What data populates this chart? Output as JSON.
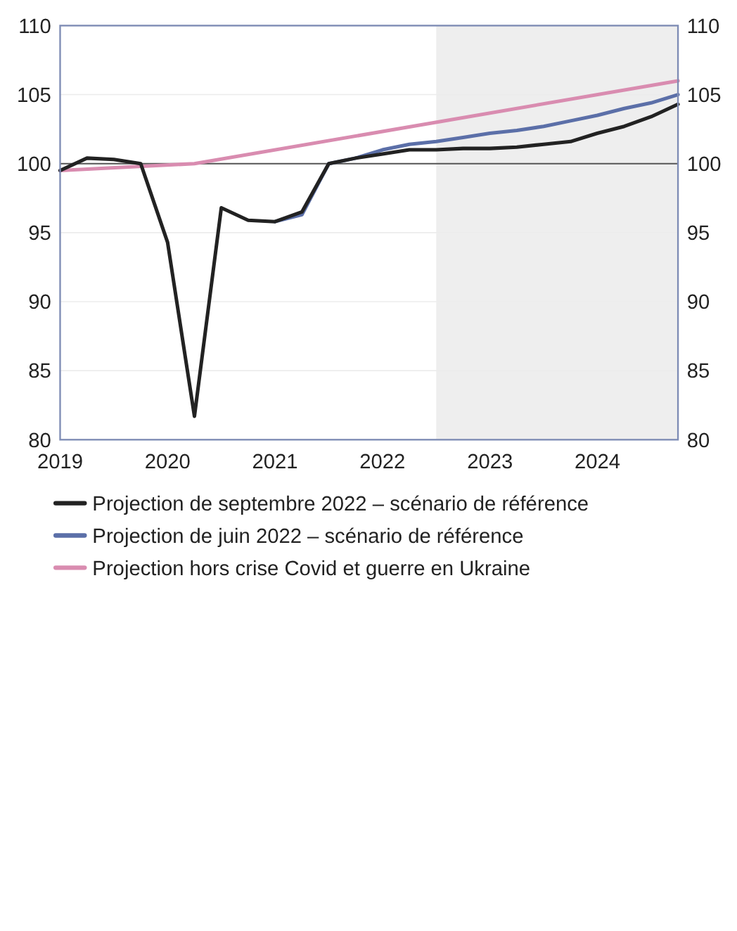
{
  "chart_data": {
    "type": "line",
    "x": [
      2019,
      2019.25,
      2019.5,
      2019.75,
      2020,
      2020.25,
      2020.5,
      2020.75,
      2021,
      2021.25,
      2021.5,
      2021.75,
      2022,
      2022.25,
      2022.5,
      2022.75,
      2023,
      2023.25,
      2023.5,
      2023.75,
      2024,
      2024.25,
      2024.5,
      2024.75
    ],
    "series": [
      {
        "name": "Projection de septembre 2022 – scénario de référence",
        "color": "#222222",
        "values": [
          99.5,
          100.4,
          100.3,
          100.0,
          94.3,
          81.7,
          96.8,
          95.9,
          95.8,
          96.5,
          100.0,
          100.4,
          100.7,
          101.0,
          101.0,
          101.1,
          101.1,
          101.2,
          101.4,
          101.6,
          102.2,
          102.7,
          103.4,
          104.3
        ]
      },
      {
        "name": "Projection de juin 2022 – scénario de référence",
        "color": "#5b6fa8",
        "values": [
          null,
          null,
          null,
          null,
          null,
          null,
          null,
          null,
          95.8,
          96.3,
          100.0,
          100.4,
          101.0,
          101.4,
          101.6,
          101.9,
          102.2,
          102.4,
          102.7,
          103.1,
          103.5,
          104.0,
          104.4,
          105.0
        ]
      },
      {
        "name": "Projection hors crise Covid et guerre en Ukraine",
        "color": "#d98cb0",
        "x": [
          2019,
          2020.25,
          2024.75
        ],
        "values": [
          99.5,
          100.0,
          106.0
        ]
      }
    ],
    "xlim": [
      2019,
      2024.75
    ],
    "xticks": [
      2019,
      2020,
      2021,
      2022,
      2023,
      2024
    ],
    "ylim": [
      80,
      110
    ],
    "yticks": [
      80,
      85,
      90,
      95,
      100,
      105,
      110
    ],
    "y2lim": [
      80,
      110
    ],
    "y2ticks": [
      80,
      85,
      90,
      95,
      100,
      105,
      110
    ],
    "ref_lines": [
      {
        "axis": "y",
        "value": 100,
        "color": "#555555"
      }
    ],
    "bands": [
      {
        "axis": "x",
        "from": 2022.5,
        "to": 2024.75,
        "color": "#eeeeee"
      }
    ],
    "grid": "y",
    "legend": "bottom",
    "line_style": "solid",
    "marker": "none"
  }
}
